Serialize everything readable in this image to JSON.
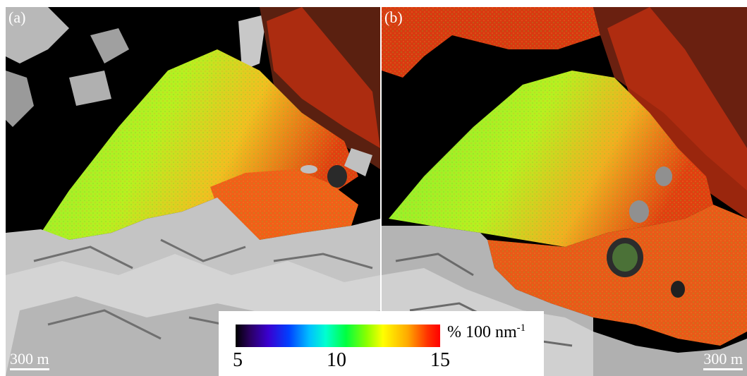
{
  "panels": [
    {
      "label": "(a)",
      "scale_label": "300 m"
    },
    {
      "label": "(b)",
      "scale_label": "300 m"
    }
  ],
  "colorbar": {
    "unit": "% 100 nm",
    "unit_exponent": "-1",
    "ticks": [
      "5",
      "10",
      "15"
    ],
    "colors": [
      "#000000",
      "#3a00d0",
      "#0040ff",
      "#00bfff",
      "#00ff40",
      "#ffff00",
      "#ff3000",
      "#ff0000"
    ]
  }
}
